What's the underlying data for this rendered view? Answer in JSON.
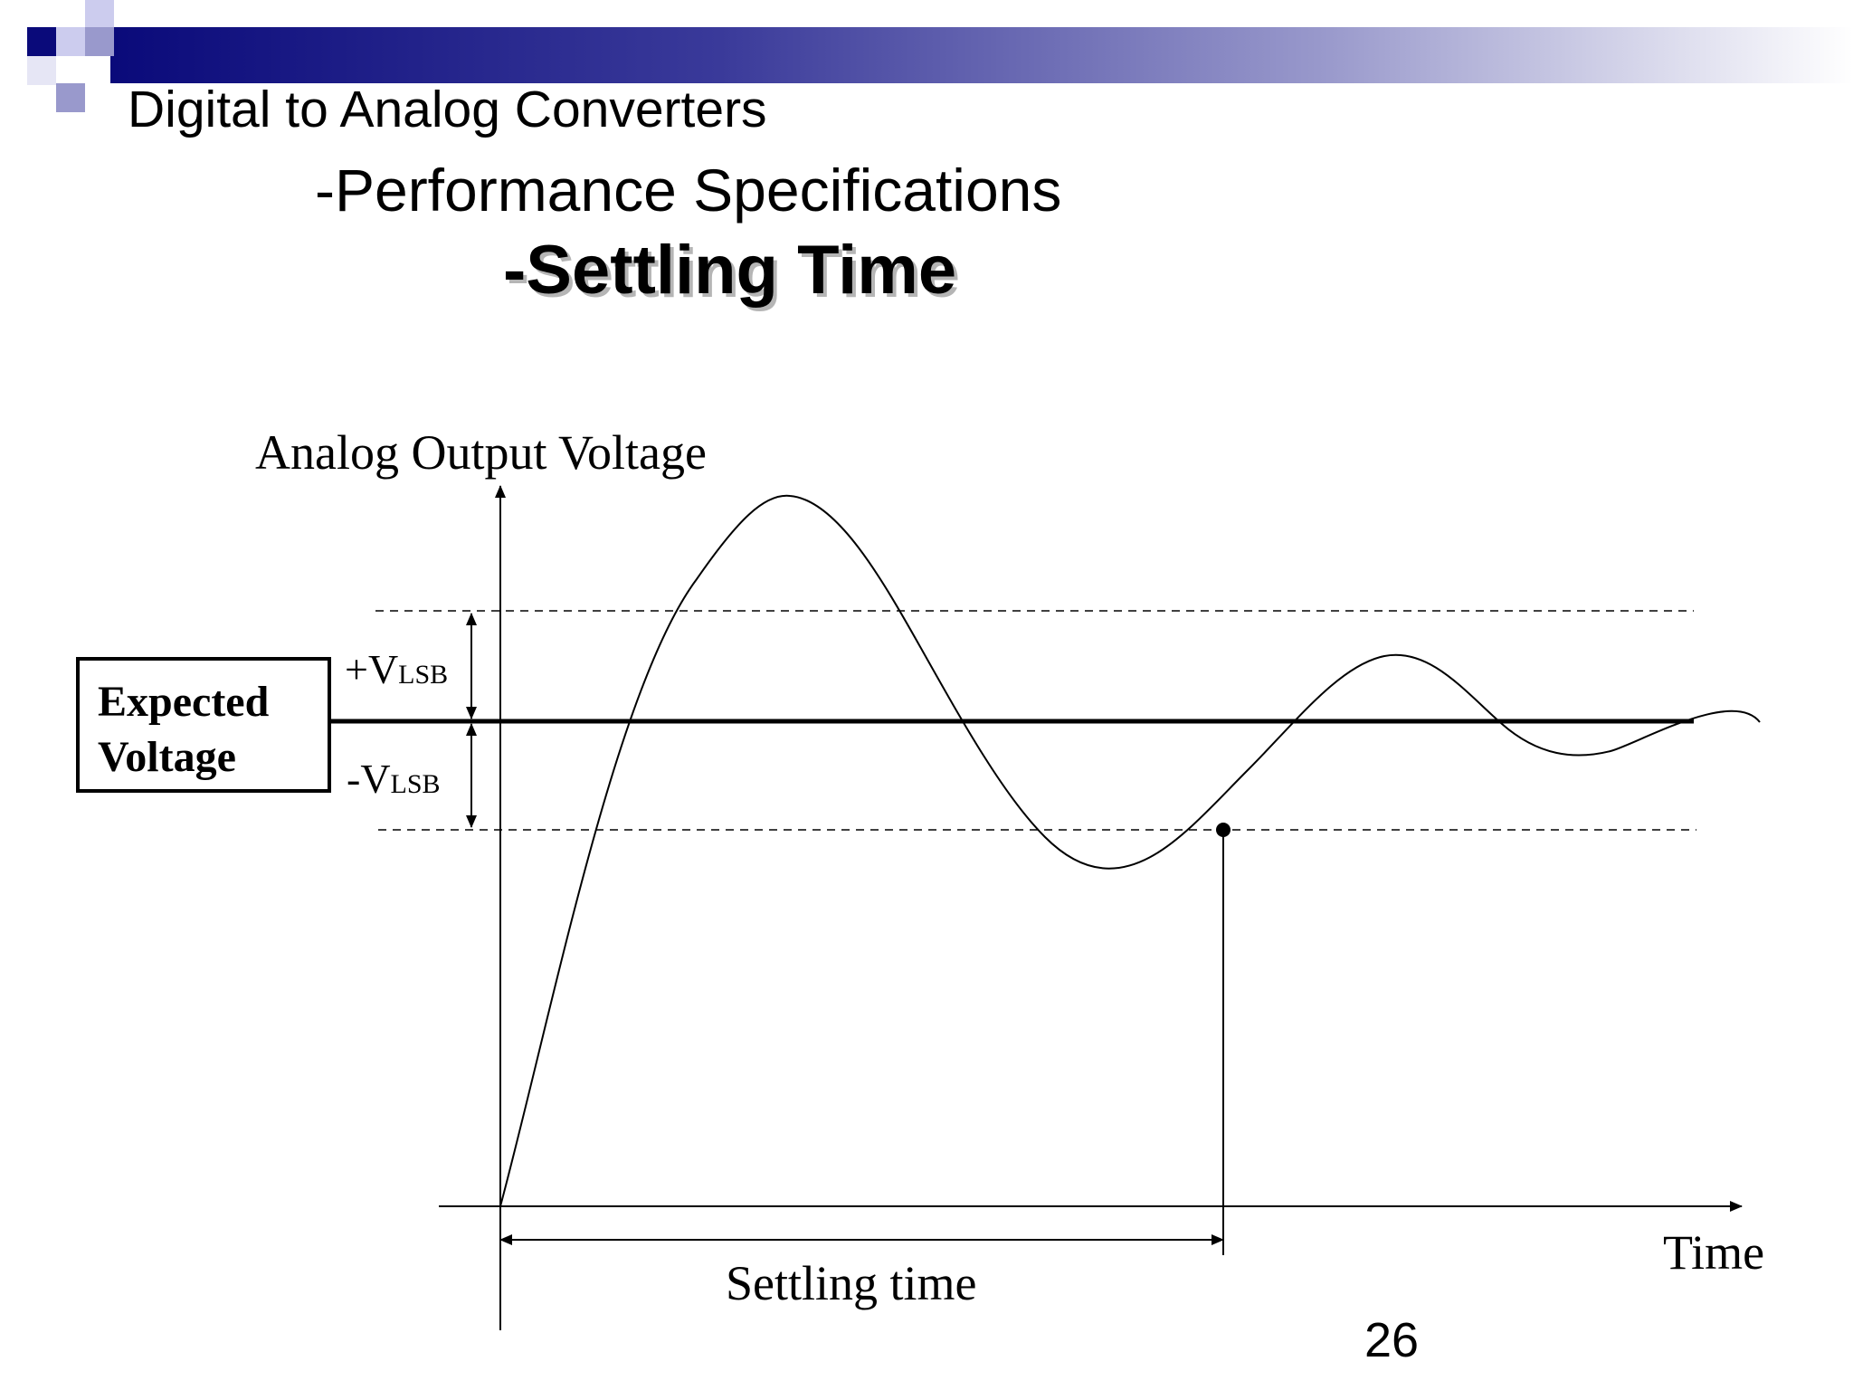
{
  "slide": {
    "title": "Digital to Analog Converters",
    "subtitle": "-Performance Specifications",
    "heading": "-Settling Time",
    "page_number": "26"
  },
  "diagram": {
    "y_axis_label": "Analog Output Voltage",
    "x_axis_label": "Time",
    "expected_box": {
      "line1": "Expected",
      "line2": "Voltage"
    },
    "upper_band": {
      "prefix": "+V",
      "subscript": "LSB"
    },
    "lower_band": {
      "prefix": "-V",
      "subscript": "LSB"
    },
    "interval_label": "Settling time"
  },
  "colors": {
    "banner_dark": "#0a0a7a",
    "banner_light": "#ffffff",
    "square_accent": "#9999cc",
    "line": "#000000"
  }
}
